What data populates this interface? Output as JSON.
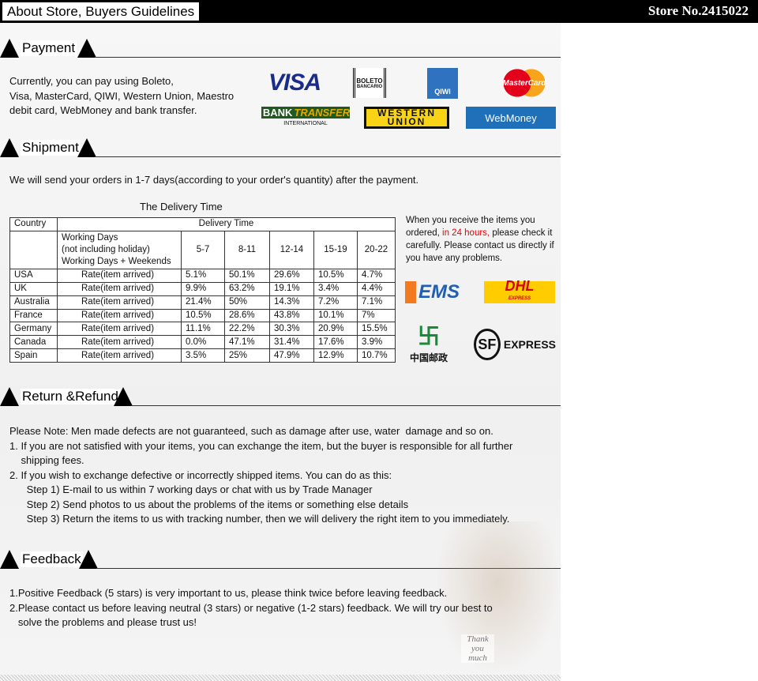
{
  "header": {
    "title": "About Store, Buyers Guidelines",
    "store": "Store No.2415022"
  },
  "payment": {
    "heading": "Payment",
    "text": [
      "Currently, you can pay using Boleto,",
      "Visa, MasterCard, QIWI, Western Union, Maestro",
      "debit card, WebMoney and bank transfer."
    ],
    "logos": {
      "visa": "VISA",
      "boleto": "BOLETO",
      "boleto_sub": "BANCARIO",
      "qiwi": "QIWI",
      "mastercard": "MasterCard",
      "bank": "BANK",
      "transfer": "TRANSFER",
      "international": "INTERNATIONAL",
      "western": "WESTERN",
      "union": "UNION",
      "webmoney": "WebMoney"
    }
  },
  "shipment": {
    "heading": "Shipment",
    "text": "We will send your orders in 1-7 days(according to your order's quantity) after the payment.",
    "table_title": "The Delivery Time",
    "table": {
      "country_header": "Country",
      "delivery_header": "Delivery Time",
      "sub_header": [
        "Working Days",
        "(not including holiday)",
        "Working Days + Weekends"
      ],
      "ranges": [
        "5-7",
        "8-11",
        "12-14",
        "15-19",
        "20-22"
      ],
      "rows": [
        {
          "country": "USA",
          "label": "Rate(item arrived)",
          "values": [
            "5.1%",
            "50.1%",
            "29.6%",
            "10.5%",
            "4.7%"
          ]
        },
        {
          "country": "UK",
          "label": "Rate(item arrived)",
          "values": [
            "9.9%",
            "63.2%",
            "19.1%",
            "3.4%",
            "4.4%"
          ]
        },
        {
          "country": "Australia",
          "label": "Rate(item arrived)",
          "values": [
            "21.4%",
            "50%",
            "14.3%",
            "7.2%",
            "7.1%"
          ]
        },
        {
          "country": "France",
          "label": "Rate(item arrived)",
          "values": [
            "10.5%",
            "28.6%",
            "43.8%",
            "10.1%",
            "7%"
          ]
        },
        {
          "country": "Germany",
          "label": "Rate(item arrived)",
          "values": [
            "11.1%",
            "22.2%",
            "30.3%",
            "20.9%",
            "15.5%"
          ]
        },
        {
          "country": "Canada",
          "label": "Rate(item arrived)",
          "values": [
            "0.0%",
            "47.1%",
            "31.4%",
            "17.6%",
            "3.9%"
          ]
        },
        {
          "country": "Spain",
          "label": "Rate(item arrived)",
          "values": [
            "3.5%",
            "25%",
            "47.9%",
            "12.9%",
            "10.7%"
          ]
        }
      ]
    },
    "note": {
      "a": "When you receive the items you ordered, ",
      "b": "in 24 hours,",
      "c": " please check it carefully. Please contact us directly if you have any problems."
    },
    "carriers": {
      "ems": "EMS",
      "dhl": "DHL",
      "dhl_sub": "EXPRESS",
      "china_post": "中国邮政",
      "sf": "SF",
      "sf_express": "EXPRESS"
    }
  },
  "refund": {
    "heading": "Return &Refund",
    "lines": [
      "Please Note: Men made defects are not guaranteed, such as damage after use, water  damage and so on.",
      "1. If you are not satisfied with your items, you can exchange the item, but the buyer is responsible for all further",
      "    shipping fees.",
      "2. If you wish to exchange defective or incorrectly shipped items. You can do as this:",
      "      Step 1) E-mail to us within 7 working days or chat with us by Trade Manager",
      "      Step 2) Send photos to us about the problems of the items or something else details",
      "      Step 3) Return the items to us with tracking number, then we will delivery the right item to you immediately."
    ]
  },
  "feedback": {
    "heading": "Feedback",
    "lines": [
      "1.Positive Feedback (5 stars) is very important to us, please think twice before leaving feedback.",
      "2.Please contact us before leaving neutral (3 stars) or negative (1-2 stars) feedback. We will try our best to",
      "   solve the problems and please trust us!"
    ],
    "sign": "Thank you much"
  }
}
